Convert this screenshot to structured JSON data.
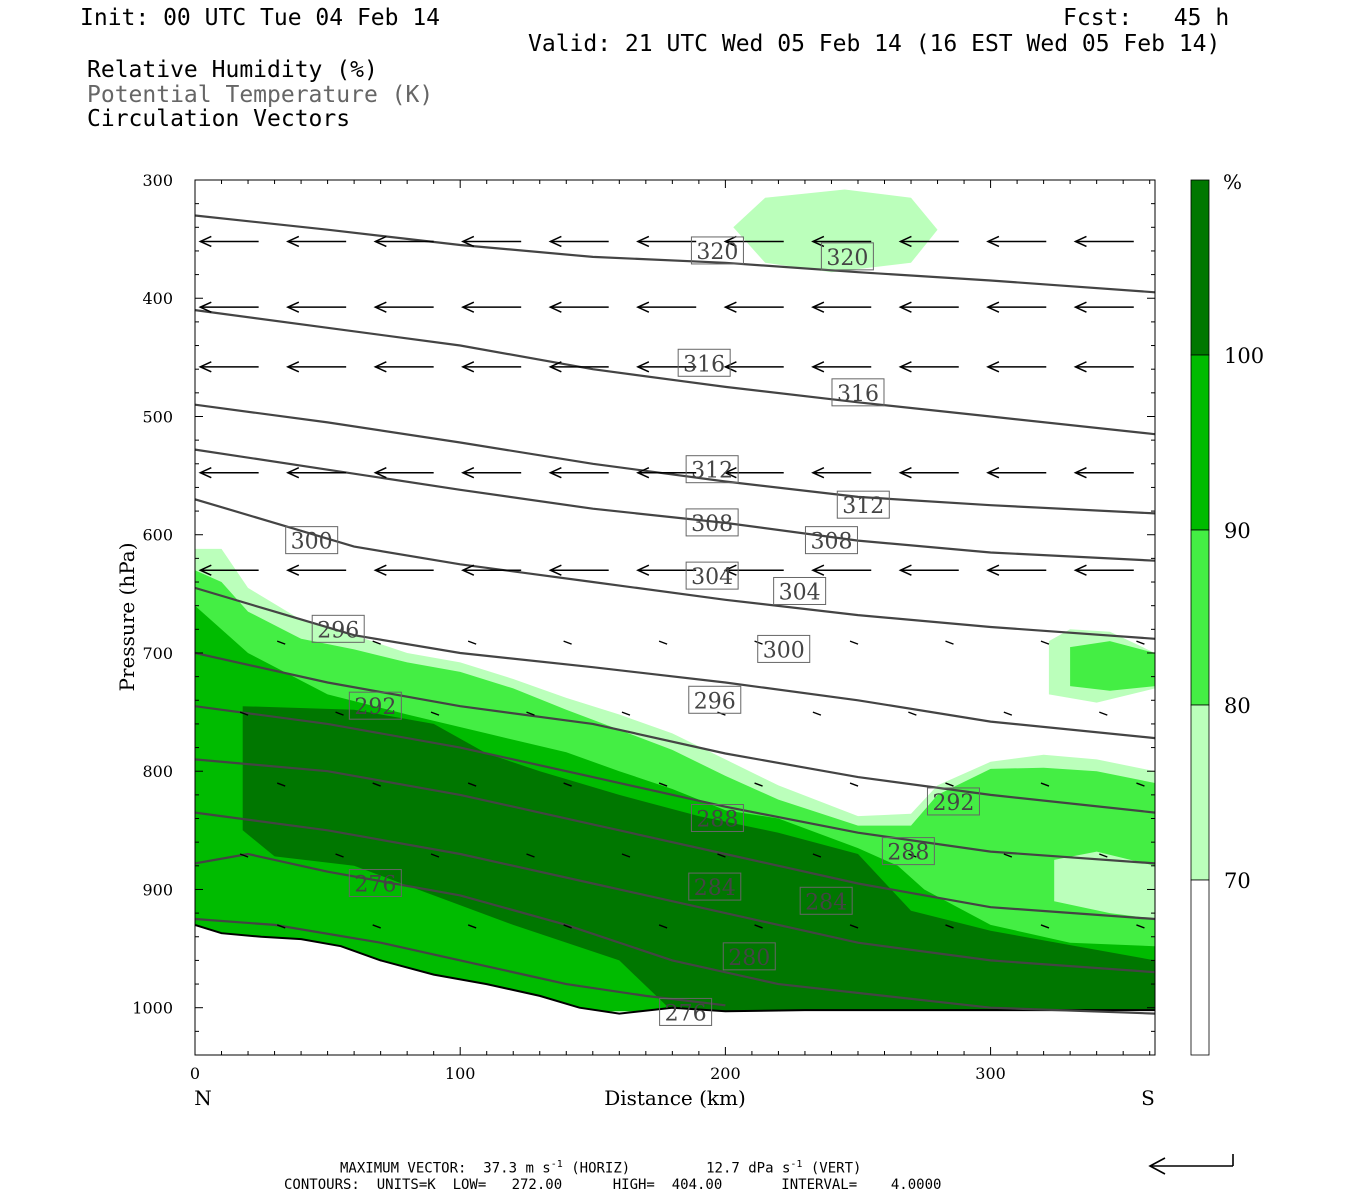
{
  "header": {
    "init": "Init: 00 UTC Tue 04 Feb 14",
    "fcst": "Fcst:   45 h",
    "valid": "Valid: 21 UTC Wed 05 Feb 14 (16 EST Wed 05 Feb 14)",
    "fields": [
      "Relative Humidity (%)",
      "Potential Temperature (K)",
      "Circulation Vectors"
    ]
  },
  "footer": {
    "max_vector_label": "MAXIMUM VECTOR:",
    "max_vector_horiz": "37.3 m s",
    "max_vector_horiz_tail": "(HORIZ)",
    "max_vector_vert": "12.7 dPa s",
    "max_vector_vert_tail": "(VERT)",
    "exponent": "-1",
    "contours": "CONTOURS:  UNITS=K  LOW=   272.00      HIGH=  404.00       INTERVAL=    4.0000"
  },
  "colors": {
    "rh_70_80": "#bbffbb",
    "rh_80_90": "#44ee44",
    "rh_90_100": "#00bb00",
    "rh_100": "#007700",
    "theta_line": "#444444"
  },
  "chart_data": {
    "type": "cross-section",
    "xlabel": "Distance (km)",
    "ylabel": "Pressure (hPa)",
    "xlim": [
      0,
      362
    ],
    "ylim": [
      1040,
      300
    ],
    "x_ticks": [
      0,
      100,
      200,
      300
    ],
    "y_ticks": [
      300,
      400,
      500,
      600,
      700,
      800,
      900,
      1000
    ],
    "endpoint_left": "N",
    "endpoint_right": "S",
    "colorbar": {
      "unit": "%",
      "levels": [
        70,
        80,
        90,
        100
      ],
      "colors": [
        "#ffffff",
        "#bbffbb",
        "#44ee44",
        "#00bb00",
        "#007700"
      ]
    },
    "rh_fill": {
      "c80": [
        [
          0,
          612
        ],
        [
          10,
          612
        ],
        [
          20,
          645
        ],
        [
          40,
          672
        ],
        [
          60,
          685
        ],
        [
          80,
          700
        ],
        [
          100,
          708
        ],
        [
          120,
          722
        ],
        [
          140,
          738
        ],
        [
          160,
          752
        ],
        [
          180,
          768
        ],
        [
          200,
          790
        ],
        [
          220,
          812
        ],
        [
          250,
          838
        ],
        [
          270,
          836
        ],
        [
          280,
          812
        ],
        [
          300,
          792
        ],
        [
          320,
          786
        ],
        [
          340,
          790
        ],
        [
          362,
          800
        ],
        [
          362,
          1003
        ],
        [
          0,
          1003
        ]
      ],
      "c90": [
        [
          0,
          630
        ],
        [
          10,
          640
        ],
        [
          20,
          665
        ],
        [
          40,
          688
        ],
        [
          60,
          697
        ],
        [
          80,
          708
        ],
        [
          100,
          716
        ],
        [
          120,
          730
        ],
        [
          140,
          748
        ],
        [
          160,
          765
        ],
        [
          180,
          782
        ],
        [
          200,
          804
        ],
        [
          220,
          824
        ],
        [
          250,
          846
        ],
        [
          270,
          846
        ],
        [
          280,
          820
        ],
        [
          300,
          798
        ],
        [
          320,
          797
        ],
        [
          340,
          800
        ],
        [
          362,
          810
        ],
        [
          362,
          1003
        ],
        [
          0,
          1003
        ]
      ],
      "c100": [
        [
          0,
          660
        ],
        [
          20,
          700
        ],
        [
          50,
          735
        ],
        [
          80,
          752
        ],
        [
          110,
          768
        ],
        [
          140,
          784
        ],
        [
          160,
          800
        ],
        [
          180,
          815
        ],
        [
          200,
          833
        ],
        [
          220,
          840
        ],
        [
          250,
          865
        ],
        [
          265,
          880
        ],
        [
          275,
          900
        ],
        [
          300,
          930
        ],
        [
          330,
          945
        ],
        [
          362,
          948
        ],
        [
          362,
          1003
        ],
        [
          0,
          1003
        ]
      ],
      "c_dark": [
        [
          18,
          745
        ],
        [
          60,
          748
        ],
        [
          90,
          760
        ],
        [
          110,
          785
        ],
        [
          130,
          800
        ],
        [
          160,
          820
        ],
        [
          190,
          838
        ],
        [
          220,
          852
        ],
        [
          250,
          870
        ],
        [
          270,
          918
        ],
        [
          300,
          935
        ],
        [
          362,
          960
        ],
        [
          362,
          1003
        ],
        [
          180,
          1003
        ],
        [
          160,
          960
        ],
        [
          120,
          930
        ],
        [
          90,
          905
        ],
        [
          60,
          880
        ],
        [
          30,
          872
        ],
        [
          18,
          850
        ]
      ],
      "small_80": [
        [
          322,
          690
        ],
        [
          330,
          680
        ],
        [
          345,
          682
        ],
        [
          362,
          700
        ],
        [
          362,
          730
        ],
        [
          340,
          742
        ],
        [
          322,
          735
        ]
      ],
      "small_90": [
        [
          330,
          695
        ],
        [
          345,
          690
        ],
        [
          362,
          700
        ],
        [
          362,
          728
        ],
        [
          345,
          732
        ],
        [
          330,
          728
        ]
      ],
      "upper_80": [
        [
          203,
          340
        ],
        [
          215,
          315
        ],
        [
          245,
          308
        ],
        [
          270,
          315
        ],
        [
          280,
          342
        ],
        [
          270,
          370
        ],
        [
          240,
          378
        ],
        [
          215,
          370
        ]
      ],
      "clear_pocket": [
        [
          324,
          875
        ],
        [
          340,
          868
        ],
        [
          362,
          880
        ],
        [
          362,
          925
        ],
        [
          345,
          920
        ],
        [
          324,
          910
        ]
      ]
    },
    "theta_contours": [
      {
        "value": 320,
        "points": [
          [
            0,
            330
          ],
          [
            50,
            342
          ],
          [
            100,
            355
          ],
          [
            150,
            365
          ],
          [
            200,
            370
          ],
          [
            250,
            378
          ],
          [
            300,
            385
          ],
          [
            362,
            395
          ]
        ]
      },
      {
        "value": 316,
        "points": [
          [
            0,
            410
          ],
          [
            50,
            425
          ],
          [
            100,
            440
          ],
          [
            150,
            460
          ],
          [
            200,
            475
          ],
          [
            250,
            488
          ],
          [
            300,
            500
          ],
          [
            362,
            515
          ]
        ]
      },
      {
        "value": 312,
        "points": [
          [
            0,
            490
          ],
          [
            50,
            505
          ],
          [
            100,
            522
          ],
          [
            150,
            540
          ],
          [
            200,
            555
          ],
          [
            250,
            568
          ],
          [
            300,
            575
          ],
          [
            362,
            582
          ]
        ]
      },
      {
        "value": 308,
        "points": [
          [
            0,
            528
          ],
          [
            50,
            545
          ],
          [
            100,
            562
          ],
          [
            150,
            578
          ],
          [
            200,
            590
          ],
          [
            250,
            605
          ],
          [
            300,
            615
          ],
          [
            362,
            622
          ]
        ]
      },
      {
        "value": 304,
        "points": [
          [
            0,
            570
          ],
          [
            30,
            590
          ],
          [
            60,
            610
          ],
          [
            100,
            625
          ],
          [
            150,
            640
          ],
          [
            200,
            655
          ],
          [
            250,
            668
          ],
          [
            300,
            678
          ],
          [
            362,
            688
          ]
        ]
      },
      {
        "value": 300,
        "points": [
          [
            0,
            645
          ],
          [
            30,
            665
          ],
          [
            60,
            685
          ],
          [
            100,
            700
          ],
          [
            150,
            712
          ],
          [
            200,
            725
          ],
          [
            250,
            740
          ],
          [
            300,
            758
          ],
          [
            362,
            772
          ]
        ]
      },
      {
        "value": 296,
        "points": [
          [
            0,
            700
          ],
          [
            50,
            725
          ],
          [
            100,
            745
          ],
          [
            150,
            760
          ],
          [
            200,
            785
          ],
          [
            250,
            805
          ],
          [
            300,
            820
          ],
          [
            362,
            835
          ]
        ]
      },
      {
        "value": 292,
        "points": [
          [
            0,
            745
          ],
          [
            50,
            760
          ],
          [
            100,
            780
          ],
          [
            150,
            805
          ],
          [
            200,
            830
          ],
          [
            250,
            852
          ],
          [
            300,
            868
          ],
          [
            362,
            878
          ]
        ]
      },
      {
        "value": 288,
        "points": [
          [
            0,
            790
          ],
          [
            50,
            800
          ],
          [
            100,
            820
          ],
          [
            150,
            845
          ],
          [
            200,
            870
          ],
          [
            250,
            895
          ],
          [
            300,
            915
          ],
          [
            362,
            925
          ]
        ]
      },
      {
        "value": 284,
        "points": [
          [
            0,
            835
          ],
          [
            50,
            850
          ],
          [
            100,
            870
          ],
          [
            150,
            895
          ],
          [
            200,
            920
          ],
          [
            250,
            945
          ],
          [
            300,
            960
          ],
          [
            362,
            970
          ]
        ]
      },
      {
        "value": 280,
        "points": [
          [
            0,
            878
          ],
          [
            20,
            870
          ],
          [
            50,
            885
          ],
          [
            100,
            905
          ],
          [
            140,
            930
          ],
          [
            180,
            960
          ],
          [
            220,
            980
          ],
          [
            260,
            990
          ],
          [
            300,
            1000
          ],
          [
            362,
            1005
          ]
        ]
      },
      {
        "value": 276,
        "points": [
          [
            0,
            925
          ],
          [
            30,
            930
          ],
          [
            70,
            945
          ],
          [
            110,
            965
          ],
          [
            140,
            980
          ],
          [
            170,
            990
          ],
          [
            200,
            998
          ]
        ]
      }
    ],
    "theta_labels": [
      {
        "text": "320",
        "x": 197,
        "p": 360
      },
      {
        "text": "320",
        "x": 246,
        "p": 365
      },
      {
        "text": "316",
        "x": 192,
        "p": 455
      },
      {
        "text": "316",
        "x": 250,
        "p": 480
      },
      {
        "text": "312",
        "x": 195,
        "p": 545
      },
      {
        "text": "312",
        "x": 252,
        "p": 575
      },
      {
        "text": "308",
        "x": 195,
        "p": 590
      },
      {
        "text": "308",
        "x": 240,
        "p": 605
      },
      {
        "text": "304",
        "x": 195,
        "p": 635
      },
      {
        "text": "304",
        "x": 228,
        "p": 648
      },
      {
        "text": "300",
        "x": 44,
        "p": 605
      },
      {
        "text": "300",
        "x": 222,
        "p": 697
      },
      {
        "text": "296",
        "x": 54,
        "p": 680
      },
      {
        "text": "296",
        "x": 196,
        "p": 740
      },
      {
        "text": "292",
        "x": 68,
        "p": 745
      },
      {
        "text": "292",
        "x": 286,
        "p": 826
      },
      {
        "text": "288",
        "x": 197,
        "p": 840
      },
      {
        "text": "288",
        "x": 269,
        "p": 868
      },
      {
        "text": "284",
        "x": 196,
        "p": 898
      },
      {
        "text": "284",
        "x": 238,
        "p": 910
      },
      {
        "text": "280",
        "x": 209,
        "p": 957
      },
      {
        "text": "276",
        "x": 68,
        "p": 895
      },
      {
        "text": "276",
        "x": 185,
        "p": 1004
      }
    ],
    "vector_rows": [
      {
        "p": 352,
        "u": -30,
        "y0": 0
      },
      {
        "p": 405,
        "u": -30,
        "y0": 0
      },
      {
        "p": 458,
        "u": -26,
        "y0": 0
      },
      {
        "p": 545,
        "u": -24,
        "y0": 0
      },
      {
        "p": 630,
        "u": -22,
        "y0": 0
      }
    ],
    "surface": [
      [
        0,
        930
      ],
      [
        10,
        937
      ],
      [
        25,
        940
      ],
      [
        40,
        942
      ],
      [
        55,
        948
      ],
      [
        70,
        960
      ],
      [
        90,
        972
      ],
      [
        110,
        980
      ],
      [
        130,
        990
      ],
      [
        145,
        1000
      ],
      [
        160,
        1005
      ],
      [
        180,
        1000
      ],
      [
        200,
        1003
      ],
      [
        230,
        1002
      ],
      [
        362,
        1002
      ]
    ]
  }
}
